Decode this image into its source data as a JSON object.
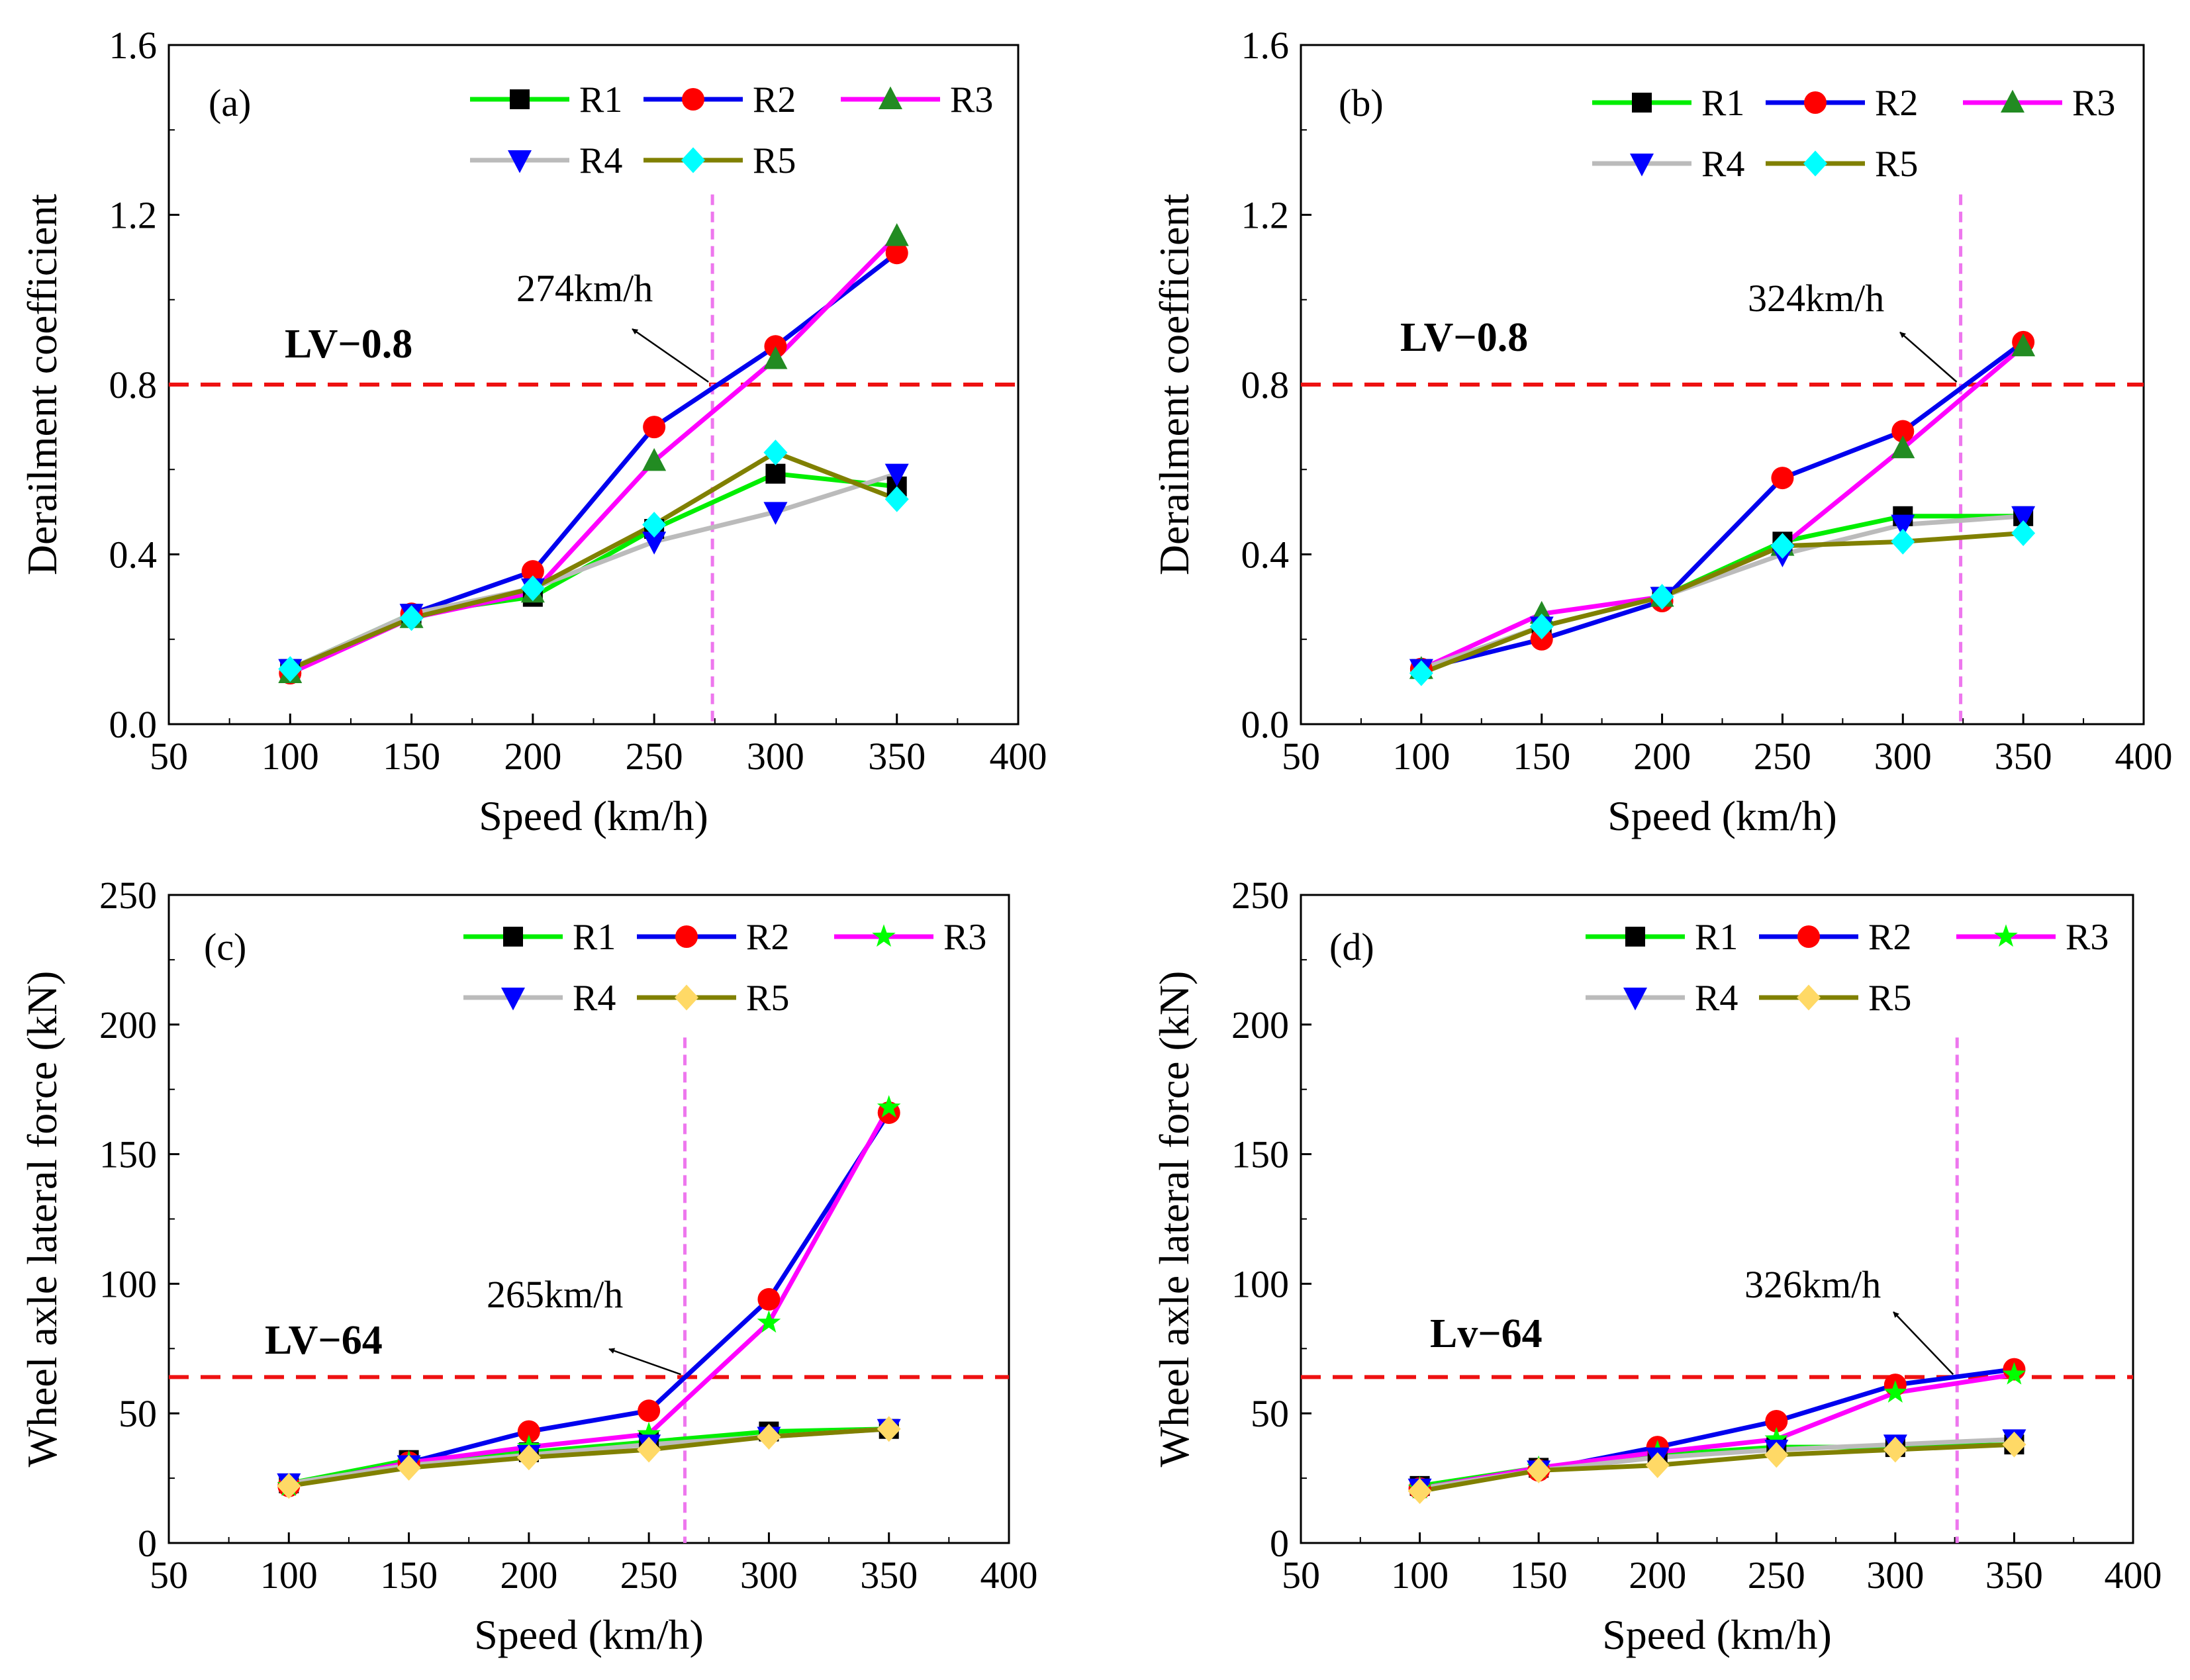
{
  "colors": {
    "R1": "#00ee00",
    "R2": "#0000ee",
    "R3": "#ff00ff",
    "R4": "#bbbbbb",
    "R5": "#808000",
    "limit": "#ee1111",
    "critical": "#ee77ee"
  },
  "chart_data": [
    {
      "type": "line",
      "panel_label": "(a)",
      "xlabel": "Speed (km/h)",
      "ylabel": "Derailment coefficient",
      "xlim": [
        50,
        400
      ],
      "ylim": [
        0,
        1.6
      ],
      "xticks": [
        "50",
        "100",
        "150",
        "200",
        "250",
        "300",
        "350",
        "400"
      ],
      "yticks": [
        "0.0",
        "0.4",
        "0.8",
        "1.2",
        "1.6"
      ],
      "x": [
        100,
        150,
        200,
        250,
        300,
        350
      ],
      "series": [
        {
          "name": "R1",
          "marker": "square",
          "marker_color": "#000000",
          "values": [
            0.13,
            0.26,
            0.3,
            0.46,
            0.59,
            0.56
          ]
        },
        {
          "name": "R2",
          "marker": "circle",
          "marker_color": "#ff0000",
          "values": [
            0.12,
            0.26,
            0.36,
            0.7,
            0.89,
            1.11
          ]
        },
        {
          "name": "R3",
          "marker": "triangle",
          "marker_color": "#228b22",
          "values": [
            0.12,
            0.25,
            0.31,
            0.62,
            0.86,
            1.15
          ]
        },
        {
          "name": "R4",
          "marker": "tri-down",
          "marker_color": "#0000ff",
          "values": [
            0.13,
            0.26,
            0.32,
            0.43,
            0.5,
            0.59
          ]
        },
        {
          "name": "R5",
          "marker": "diamond",
          "marker_color": "#00ffff",
          "values": [
            0.13,
            0.25,
            0.32,
            0.47,
            0.64,
            0.53
          ]
        }
      ],
      "limit": {
        "label": "LV−0.8",
        "value": 0.8
      },
      "critical": {
        "label": "274km/h",
        "value": 274
      }
    },
    {
      "type": "line",
      "panel_label": "(b)",
      "xlabel": "Speed (km/h)",
      "ylabel": "Derailment coefficient",
      "xlim": [
        50,
        400
      ],
      "ylim": [
        0,
        1.6
      ],
      "xticks": [
        "50",
        "100",
        "150",
        "200",
        "250",
        "300",
        "350",
        "400"
      ],
      "yticks": [
        "0.0",
        "0.4",
        "0.8",
        "1.2",
        "1.6"
      ],
      "x": [
        100,
        150,
        200,
        250,
        300,
        350
      ],
      "series": [
        {
          "name": "R1",
          "marker": "square",
          "marker_color": "#000000",
          "values": [
            0.13,
            0.23,
            0.3,
            0.43,
            0.49,
            0.49
          ]
        },
        {
          "name": "R2",
          "marker": "circle",
          "marker_color": "#ff0000",
          "values": [
            0.13,
            0.2,
            0.29,
            0.58,
            0.69,
            0.9
          ]
        },
        {
          "name": "R3",
          "marker": "triangle",
          "marker_color": "#228b22",
          "values": [
            0.13,
            0.26,
            0.3,
            0.42,
            0.65,
            0.89
          ]
        },
        {
          "name": "R4",
          "marker": "tri-down",
          "marker_color": "#0000ff",
          "values": [
            0.13,
            0.23,
            0.3,
            0.4,
            0.47,
            0.49
          ]
        },
        {
          "name": "R5",
          "marker": "diamond",
          "marker_color": "#00ffff",
          "values": [
            0.12,
            0.23,
            0.3,
            0.42,
            0.43,
            0.45
          ]
        }
      ],
      "limit": {
        "label": "LV−0.8",
        "value": 0.8
      },
      "critical": {
        "label": "324km/h",
        "value": 324
      }
    },
    {
      "type": "line",
      "panel_label": "(c)",
      "xlabel": "Speed (km/h)",
      "ylabel": "Wheel axle lateral force (kN)",
      "xlim": [
        50,
        400
      ],
      "ylim": [
        0,
        250
      ],
      "xticks": [
        "50",
        "100",
        "150",
        "200",
        "250",
        "300",
        "350",
        "400"
      ],
      "yticks": [
        "0",
        "50",
        "100",
        "150",
        "200",
        "250"
      ],
      "x": [
        100,
        150,
        200,
        250,
        300,
        350
      ],
      "series": [
        {
          "name": "R1",
          "marker": "square",
          "marker_color": "#000000",
          "values": [
            23,
            32,
            35,
            39,
            43,
            44
          ]
        },
        {
          "name": "R2",
          "marker": "circle",
          "marker_color": "#ff0000",
          "values": [
            22,
            31,
            43,
            51,
            94,
            166
          ]
        },
        {
          "name": "R3",
          "marker": "star",
          "marker_color": "#00ff00",
          "values": [
            22,
            31,
            37,
            42,
            85,
            168
          ]
        },
        {
          "name": "R4",
          "marker": "tri-down",
          "marker_color": "#0000ff",
          "values": [
            23,
            30,
            34,
            38,
            41,
            44
          ]
        },
        {
          "name": "R5",
          "marker": "diamond",
          "marker_color": "#ffd966",
          "values": [
            22,
            29,
            33,
            36,
            41,
            44
          ]
        }
      ],
      "limit": {
        "label": "LV−64",
        "value": 64
      },
      "critical": {
        "label": "265km/h",
        "value": 265
      }
    },
    {
      "type": "line",
      "panel_label": "(d)",
      "xlabel": "Speed (km/h)",
      "ylabel": "Wheel axle lateral force (kN)",
      "xlim": [
        50,
        400
      ],
      "ylim": [
        0,
        250
      ],
      "xticks": [
        "50",
        "100",
        "150",
        "200",
        "250",
        "300",
        "350",
        "400"
      ],
      "yticks": [
        "0",
        "50",
        "100",
        "150",
        "200",
        "250"
      ],
      "x": [
        100,
        150,
        200,
        250,
        300,
        350
      ],
      "series": [
        {
          "name": "R1",
          "marker": "square",
          "marker_color": "#000000",
          "values": [
            22,
            29,
            34,
            37,
            37,
            38
          ]
        },
        {
          "name": "R2",
          "marker": "circle",
          "marker_color": "#ff0000",
          "values": [
            21,
            28,
            37,
            47,
            61,
            67
          ]
        },
        {
          "name": "R3",
          "marker": "star",
          "marker_color": "#00ff00",
          "values": [
            21,
            29,
            35,
            40,
            58,
            65
          ]
        },
        {
          "name": "R4",
          "marker": "tri-down",
          "marker_color": "#0000ff",
          "values": [
            21,
            28,
            33,
            36,
            38,
            40
          ]
        },
        {
          "name": "R5",
          "marker": "diamond",
          "marker_color": "#ffd966",
          "values": [
            20,
            28,
            30,
            34,
            36,
            38
          ]
        }
      ],
      "limit": {
        "label": "Lv−64",
        "value": 64
      },
      "critical": {
        "label": "326km/h",
        "value": 326
      }
    }
  ]
}
